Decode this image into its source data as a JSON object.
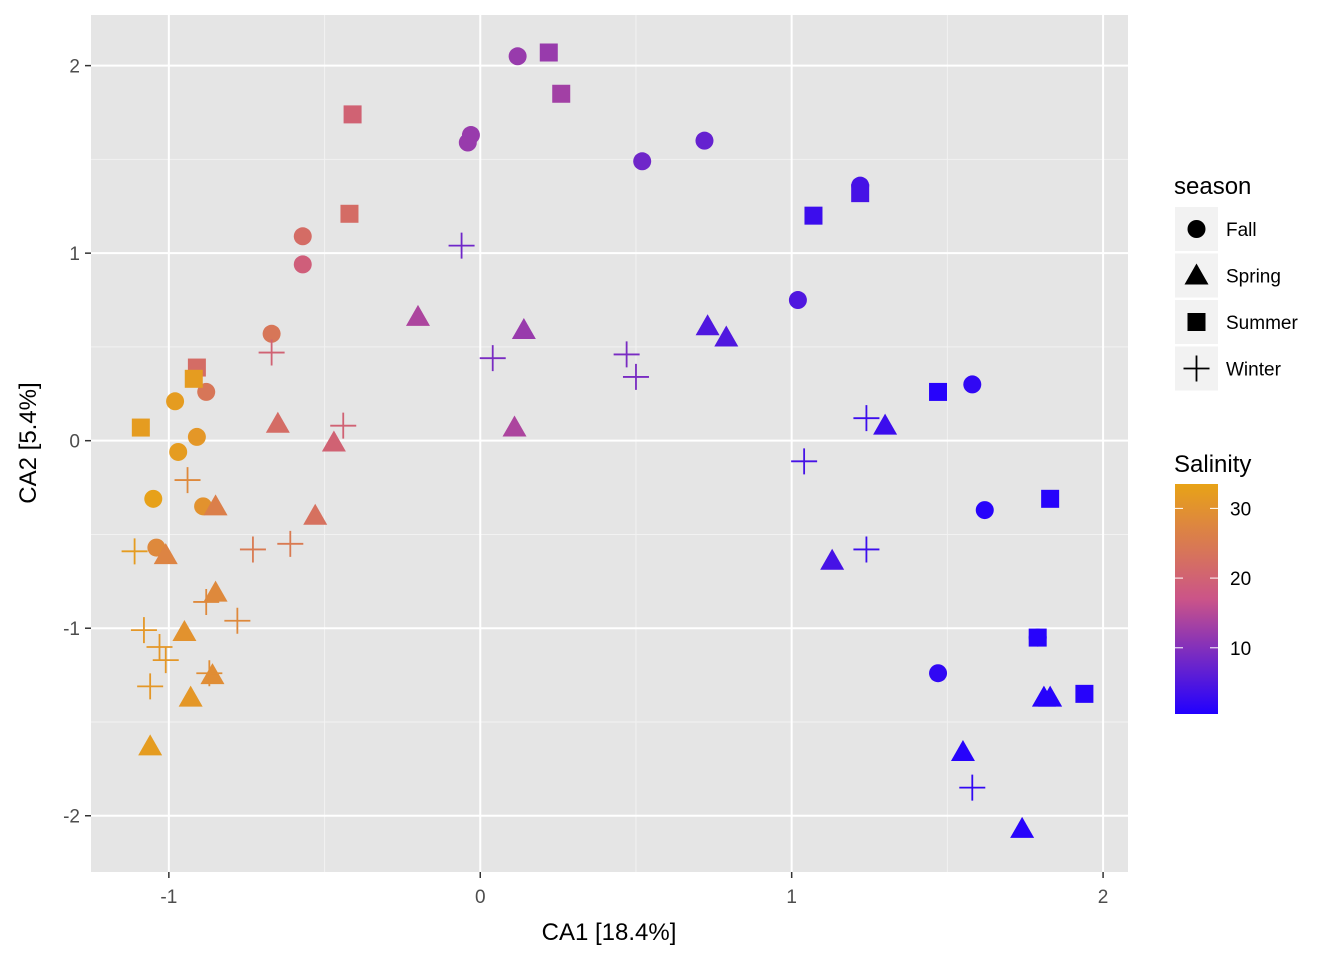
{
  "chart_data": {
    "type": "scatter",
    "xlabel": "CA1   [18.4%]",
    "ylabel": "CA2   [5.4%]",
    "xlim": [
      -1.25,
      2.08
    ],
    "ylim": [
      -2.3,
      2.27
    ],
    "x_ticks": [
      -1,
      0,
      1,
      2
    ],
    "x_tick_labels": [
      "-1",
      "0",
      "1",
      "2"
    ],
    "y_ticks": [
      -2,
      -1,
      0,
      1,
      2
    ],
    "y_tick_labels": [
      "-2",
      "-1",
      "0",
      "1",
      "2"
    ],
    "grid": true,
    "panel_background": "#e5e5e5",
    "shape_legend": {
      "title": "season",
      "items": [
        {
          "label": "Fall",
          "shape": "circle"
        },
        {
          "label": "Spring",
          "shape": "triangle"
        },
        {
          "label": "Summer",
          "shape": "square"
        },
        {
          "label": "Winter",
          "shape": "plus"
        }
      ]
    },
    "color_legend": {
      "title": "Salinity",
      "min": 0.5,
      "max": 33.5,
      "ticks": [
        10,
        20,
        30
      ],
      "tick_labels": [
        "10",
        "20",
        "30"
      ],
      "low_color": "#2200ff",
      "high_color": "#e8a316"
    },
    "points": [
      {
        "x": 0.12,
        "y": 2.05,
        "season": "Fall",
        "salinity": 12
      },
      {
        "x": -0.04,
        "y": 1.59,
        "season": "Fall",
        "salinity": 12
      },
      {
        "x": -0.03,
        "y": 1.63,
        "season": "Fall",
        "salinity": 12
      },
      {
        "x": 0.52,
        "y": 1.49,
        "season": "Fall",
        "salinity": 8
      },
      {
        "x": 0.72,
        "y": 1.6,
        "season": "Fall",
        "salinity": 7
      },
      {
        "x": 1.22,
        "y": 1.36,
        "season": "Fall",
        "salinity": 4
      },
      {
        "x": -0.57,
        "y": 1.09,
        "season": "Fall",
        "salinity": 22
      },
      {
        "x": -0.57,
        "y": 0.94,
        "season": "Fall",
        "salinity": 19
      },
      {
        "x": -0.67,
        "y": 0.57,
        "season": "Fall",
        "salinity": 24
      },
      {
        "x": 1.02,
        "y": 0.75,
        "season": "Fall",
        "salinity": 5
      },
      {
        "x": 1.58,
        "y": 0.3,
        "season": "Fall",
        "salinity": 2
      },
      {
        "x": 1.62,
        "y": -0.37,
        "season": "Fall",
        "salinity": 1
      },
      {
        "x": 1.47,
        "y": -1.24,
        "season": "Fall",
        "salinity": 2
      },
      {
        "x": -0.88,
        "y": 0.26,
        "season": "Fall",
        "salinity": 24
      },
      {
        "x": -0.98,
        "y": 0.21,
        "season": "Fall",
        "salinity": 32
      },
      {
        "x": -0.91,
        "y": 0.02,
        "season": "Fall",
        "salinity": 31
      },
      {
        "x": -0.97,
        "y": -0.06,
        "season": "Fall",
        "salinity": 32
      },
      {
        "x": -1.05,
        "y": -0.31,
        "season": "Fall",
        "salinity": 33
      },
      {
        "x": -0.89,
        "y": -0.35,
        "season": "Fall",
        "salinity": 30
      },
      {
        "x": -1.04,
        "y": -0.57,
        "season": "Fall",
        "salinity": 28
      },
      {
        "x": 1.79,
        "y": -1.05,
        "season": "Fall",
        "salinity": 2
      },
      {
        "x": -0.2,
        "y": 0.66,
        "season": "Spring",
        "salinity": 14
      },
      {
        "x": 0.14,
        "y": 0.59,
        "season": "Spring",
        "salinity": 12
      },
      {
        "x": 0.11,
        "y": 0.07,
        "season": "Spring",
        "salinity": 14
      },
      {
        "x": 0.73,
        "y": 0.61,
        "season": "Spring",
        "salinity": 5
      },
      {
        "x": 0.79,
        "y": 0.55,
        "season": "Spring",
        "salinity": 5
      },
      {
        "x": 1.3,
        "y": 0.08,
        "season": "Spring",
        "salinity": 3
      },
      {
        "x": 1.13,
        "y": -0.64,
        "season": "Spring",
        "salinity": 4
      },
      {
        "x": -0.65,
        "y": 0.09,
        "season": "Spring",
        "salinity": 22
      },
      {
        "x": -0.47,
        "y": -0.01,
        "season": "Spring",
        "salinity": 20
      },
      {
        "x": -0.53,
        "y": -0.4,
        "season": "Spring",
        "salinity": 23
      },
      {
        "x": -0.85,
        "y": -0.35,
        "season": "Spring",
        "salinity": 26
      },
      {
        "x": -1.01,
        "y": -0.61,
        "season": "Spring",
        "salinity": 27
      },
      {
        "x": -0.85,
        "y": -0.81,
        "season": "Spring",
        "salinity": 28
      },
      {
        "x": -0.95,
        "y": -1.02,
        "season": "Spring",
        "salinity": 30
      },
      {
        "x": -0.86,
        "y": -1.25,
        "season": "Spring",
        "salinity": 29
      },
      {
        "x": -0.93,
        "y": -1.37,
        "season": "Spring",
        "salinity": 31
      },
      {
        "x": -1.06,
        "y": -1.63,
        "season": "Spring",
        "salinity": 32
      },
      {
        "x": 1.81,
        "y": -1.37,
        "season": "Spring",
        "salinity": 1
      },
      {
        "x": 1.83,
        "y": -1.37,
        "season": "Spring",
        "salinity": 1
      },
      {
        "x": 1.55,
        "y": -1.66,
        "season": "Spring",
        "salinity": 1
      },
      {
        "x": 1.74,
        "y": -2.07,
        "season": "Spring",
        "salinity": 1
      },
      {
        "x": 0.22,
        "y": 2.07,
        "season": "Summer",
        "salinity": 12
      },
      {
        "x": 0.26,
        "y": 1.85,
        "season": "Summer",
        "salinity": 13
      },
      {
        "x": -0.41,
        "y": 1.74,
        "season": "Summer",
        "salinity": 20
      },
      {
        "x": -0.42,
        "y": 1.21,
        "season": "Summer",
        "salinity": 22
      },
      {
        "x": 1.07,
        "y": 1.2,
        "season": "Summer",
        "salinity": 3
      },
      {
        "x": 1.22,
        "y": 1.32,
        "season": "Summer",
        "salinity": 4
      },
      {
        "x": -0.91,
        "y": 0.39,
        "season": "Summer",
        "salinity": 22
      },
      {
        "x": -0.92,
        "y": 0.33,
        "season": "Summer",
        "salinity": 32
      },
      {
        "x": -1.09,
        "y": 0.07,
        "season": "Summer",
        "salinity": 32
      },
      {
        "x": 1.47,
        "y": 0.26,
        "season": "Summer",
        "salinity": 1
      },
      {
        "x": 1.83,
        "y": -0.31,
        "season": "Summer",
        "salinity": 1
      },
      {
        "x": 1.79,
        "y": -1.05,
        "season": "Summer",
        "salinity": 1
      },
      {
        "x": 1.94,
        "y": -1.35,
        "season": "Summer",
        "salinity": 1
      },
      {
        "x": -0.06,
        "y": 1.04,
        "season": "Winter",
        "salinity": 8
      },
      {
        "x": -0.67,
        "y": 0.47,
        "season": "Winter",
        "salinity": 20
      },
      {
        "x": 0.04,
        "y": 0.44,
        "season": "Winter",
        "salinity": 9
      },
      {
        "x": 0.47,
        "y": 0.46,
        "season": "Winter",
        "salinity": 9
      },
      {
        "x": 0.5,
        "y": 0.34,
        "season": "Winter",
        "salinity": 9
      },
      {
        "x": -0.44,
        "y": 0.08,
        "season": "Winter",
        "salinity": 20
      },
      {
        "x": 1.24,
        "y": 0.12,
        "season": "Winter",
        "salinity": 3
      },
      {
        "x": 1.04,
        "y": -0.11,
        "season": "Winter",
        "salinity": 4
      },
      {
        "x": 1.24,
        "y": -0.58,
        "season": "Winter",
        "salinity": 3
      },
      {
        "x": -0.94,
        "y": -0.21,
        "season": "Winter",
        "salinity": 28
      },
      {
        "x": -0.73,
        "y": -0.58,
        "season": "Winter",
        "salinity": 25
      },
      {
        "x": -0.61,
        "y": -0.55,
        "season": "Winter",
        "salinity": 25
      },
      {
        "x": -1.11,
        "y": -0.59,
        "season": "Winter",
        "salinity": 32
      },
      {
        "x": -0.88,
        "y": -0.86,
        "season": "Winter",
        "salinity": 28
      },
      {
        "x": -0.78,
        "y": -0.96,
        "season": "Winter",
        "salinity": 28
      },
      {
        "x": -1.08,
        "y": -1.01,
        "season": "Winter",
        "salinity": 31
      },
      {
        "x": -1.03,
        "y": -1.1,
        "season": "Winter",
        "salinity": 31
      },
      {
        "x": -1.01,
        "y": -1.17,
        "season": "Winter",
        "salinity": 31
      },
      {
        "x": -0.87,
        "y": -1.24,
        "season": "Winter",
        "salinity": 29
      },
      {
        "x": -1.06,
        "y": -1.31,
        "season": "Winter",
        "salinity": 31
      },
      {
        "x": 1.58,
        "y": -1.85,
        "season": "Winter",
        "salinity": 2
      }
    ]
  }
}
